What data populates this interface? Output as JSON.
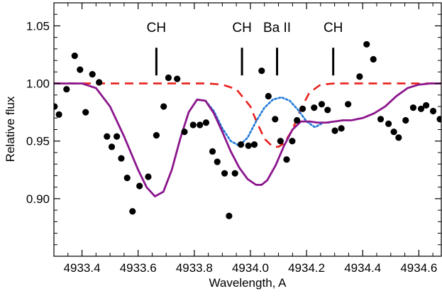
{
  "chart_data": {
    "type": "line",
    "xlabel": "Wavelength, A",
    "ylabel": "Relative flux",
    "xlim": [
      4933.3,
      4934.68
    ],
    "ylim": [
      0.85,
      1.07
    ],
    "xticks": [
      {
        "value": 4933.4,
        "label": "4933.4"
      },
      {
        "value": 4933.6,
        "label": "4933.6"
      },
      {
        "value": 4933.8,
        "label": "4933.8"
      },
      {
        "value": 4934.0,
        "label": "4934.0"
      },
      {
        "value": 4934.2,
        "label": "4934.2"
      },
      {
        "value": 4934.4,
        "label": "4934.4"
      },
      {
        "value": 4934.6,
        "label": "4934.6"
      }
    ],
    "xminor": [
      4933.35,
      4933.45,
      4933.5,
      4933.55,
      4933.65,
      4933.7,
      4933.75,
      4933.85,
      4933.9,
      4933.95,
      4934.05,
      4934.1,
      4934.15,
      4934.25,
      4934.3,
      4934.35,
      4934.45,
      4934.5,
      4934.55,
      4934.65
    ],
    "yticks": [
      {
        "value": 0.9,
        "label": "0.90"
      },
      {
        "value": 0.95,
        "label": "0.95"
      },
      {
        "value": 1.0,
        "label": "1.00"
      },
      {
        "value": 1.05,
        "label": "1.05"
      }
    ],
    "yminor": [
      0.86,
      0.87,
      0.88,
      0.89,
      0.91,
      0.92,
      0.93,
      0.94,
      0.96,
      0.97,
      0.98,
      0.99,
      1.01,
      1.02,
      1.03,
      1.04,
      1.06
    ],
    "grid": false,
    "annotations": [
      {
        "label": "CH",
        "x": 4933.665
      },
      {
        "label": "CH",
        "x": 4933.97
      },
      {
        "label": "Ba II",
        "x": 4934.095
      },
      {
        "label": "CH",
        "x": 4934.295
      }
    ],
    "annotation_marker_range": [
      1.007,
      1.031
    ],
    "observed_points": {
      "color": "#000000",
      "x": [
        4933.302,
        4933.318,
        4933.345,
        4933.374,
        4933.393,
        4933.413,
        4933.437,
        4933.461,
        4933.489,
        4933.506,
        4933.524,
        4933.54,
        4933.561,
        4933.58,
        4933.605,
        4933.636,
        4933.665,
        4933.691,
        4933.708,
        4933.739,
        4933.765,
        4933.796,
        4933.82,
        4933.842,
        4933.865,
        4933.882,
        4933.908,
        4933.924,
        4933.945,
        4933.966,
        4933.993,
        4934.014,
        4934.04,
        4934.064,
        4934.088,
        4934.107,
        4934.129,
        4934.149,
        4934.166,
        4934.186,
        4934.227,
        4934.254,
        4934.275,
        4934.301,
        4934.324,
        4934.348,
        4934.389,
        4934.414,
        4934.438,
        4934.464,
        4934.492,
        4934.511,
        4934.528,
        4934.553,
        4934.58,
        4934.608,
        4934.626,
        4934.651,
        4934.675
      ],
      "y": [
        0.98,
        0.973,
        0.995,
        1.024,
        1.012,
        0.975,
        1.008,
        1.001,
        0.954,
        0.945,
        0.954,
        0.935,
        0.918,
        0.889,
        0.911,
        0.919,
        0.955,
        0.98,
        1.005,
        1.004,
        0.958,
        0.964,
        0.964,
        0.966,
        0.941,
        0.932,
        0.922,
        0.885,
        0.922,
        0.947,
        0.946,
        0.947,
        1.011,
        0.989,
        0.969,
        0.95,
        0.934,
        0.95,
        0.968,
        0.978,
        0.979,
        0.982,
        0.977,
        0.959,
        0.961,
        0.982,
        1.006,
        1.034,
        1.021,
        0.969,
        0.965,
        0.958,
        0.953,
        0.968,
        0.979,
        0.978,
        0.981,
        0.976,
        0.969
      ]
    },
    "series": [
      {
        "style": "dashed",
        "color": "#e8201c",
        "x": [
          4933.3,
          4933.4,
          4933.5,
          4933.6,
          4933.7,
          4933.8,
          4933.85,
          4933.9,
          4933.95,
          4934.0,
          4934.02,
          4934.05,
          4934.08,
          4934.1,
          4934.12,
          4934.15,
          4934.18,
          4934.21,
          4934.25,
          4934.3,
          4934.4,
          4934.5,
          4934.6,
          4934.68
        ],
        "values": [
          1.0,
          1.0,
          1.0,
          1.0,
          1.0,
          1.0,
          1.0,
          0.999,
          0.995,
          0.98,
          0.968,
          0.952,
          0.945,
          0.945,
          0.948,
          0.96,
          0.978,
          0.992,
          0.999,
          1.0,
          1.0,
          1.0,
          1.0,
          1.0
        ]
      },
      {
        "style": "dotted",
        "color": "#1f78d8",
        "x": [
          4933.84,
          4933.87,
          4933.9,
          4933.93,
          4933.96,
          4933.99,
          4934.02,
          4934.05,
          4934.08,
          4934.11,
          4934.14,
          4934.17,
          4934.2,
          4934.23,
          4934.26,
          4934.28
        ],
        "values": [
          0.985,
          0.976,
          0.961,
          0.95,
          0.946,
          0.953,
          0.967,
          0.979,
          0.986,
          0.988,
          0.985,
          0.977,
          0.967,
          0.962,
          0.966,
          0.966
        ]
      },
      {
        "style": "solid",
        "color": "#8b168c",
        "x": [
          4933.3,
          4933.35,
          4933.4,
          4933.45,
          4933.5,
          4933.55,
          4933.6,
          4933.63,
          4933.66,
          4933.69,
          4933.72,
          4933.75,
          4933.78,
          4933.81,
          4933.84,
          4933.87,
          4933.9,
          4933.93,
          4933.96,
          4933.99,
          4934.02,
          4934.04,
          4934.06,
          4934.09,
          4934.12,
          4934.15,
          4934.18,
          4934.21,
          4934.24,
          4934.27,
          4934.3,
          4934.33,
          4934.36,
          4934.4,
          4934.44,
          4934.48,
          4934.52,
          4934.56,
          4934.6,
          4934.64,
          4934.68
        ],
        "values": [
          1.0,
          1.0,
          1.0,
          0.996,
          0.98,
          0.954,
          0.925,
          0.91,
          0.902,
          0.906,
          0.925,
          0.952,
          0.975,
          0.986,
          0.985,
          0.974,
          0.958,
          0.941,
          0.927,
          0.917,
          0.912,
          0.912,
          0.916,
          0.929,
          0.946,
          0.96,
          0.967,
          0.967,
          0.966,
          0.966,
          0.967,
          0.968,
          0.968,
          0.97,
          0.974,
          0.98,
          0.989,
          0.996,
          0.999,
          1.0,
          1.0
        ]
      }
    ]
  }
}
